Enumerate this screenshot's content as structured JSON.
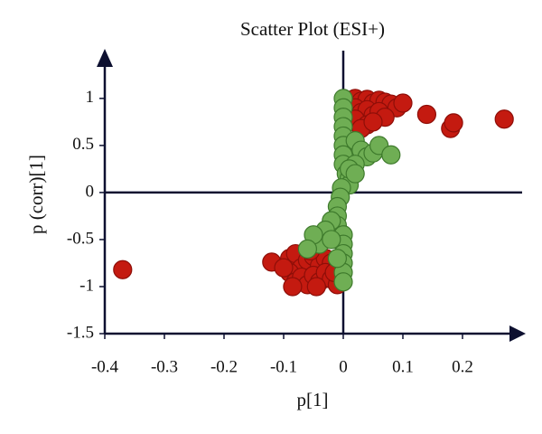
{
  "chart_data": {
    "type": "scatter",
    "title": "Scatter Plot (ESI+)",
    "x_label": "p[1]",
    "y_label": "p (corr)[1]",
    "xlim": [
      -0.4,
      0.3
    ],
    "ylim": [
      -1.5,
      1.45
    ],
    "xticks": [
      -0.4,
      -0.3,
      -0.2,
      -0.1,
      0,
      0.1,
      0.2
    ],
    "yticks": [
      -1.5,
      -1,
      -0.5,
      0,
      0.5,
      1
    ],
    "series": [
      {
        "color": "#c41a10",
        "stroke": "#8e0e08",
        "x": [
          0.01,
          0.02,
          0.03,
          0.04,
          0.05,
          0.06,
          0.07,
          0.08,
          0.09,
          0.02,
          0.03,
          0.04,
          0.05,
          0.06,
          0.07,
          0.02,
          0.04,
          0.03,
          0.05,
          0.1,
          0.14,
          0.18,
          0.185,
          0.27,
          -0.37,
          -0.12,
          -0.09,
          -0.08,
          -0.07,
          -0.06,
          -0.05,
          -0.04,
          -0.03,
          -0.02,
          -0.09,
          -0.08,
          -0.07,
          -0.06,
          -0.05,
          -0.04,
          -0.03,
          -0.02,
          -0.01,
          -0.1,
          -0.085,
          -0.045,
          -0.015,
          -0.055
        ],
        "values": [
          0.98,
          1.0,
          0.97,
          0.99,
          0.95,
          0.98,
          0.96,
          0.94,
          0.9,
          0.9,
          0.85,
          0.88,
          0.82,
          0.86,
          0.8,
          0.78,
          0.72,
          0.68,
          0.75,
          0.95,
          0.83,
          0.68,
          0.74,
          0.78,
          -0.82,
          -0.74,
          -0.7,
          -0.65,
          -0.8,
          -0.72,
          -0.68,
          -0.78,
          -0.7,
          -0.75,
          -0.85,
          -0.95,
          -0.9,
          -0.98,
          -0.88,
          -0.95,
          -0.85,
          -0.92,
          -0.98,
          -0.8,
          -1.0,
          -1.0,
          -0.85,
          -0.62
        ]
      },
      {
        "color": "#6fae54",
        "stroke": "#3e7a2c",
        "x": [
          0,
          0,
          0,
          0,
          0,
          0,
          0,
          0,
          0.005,
          0.01,
          0.01,
          0.02,
          0.03,
          0.04,
          0.05,
          0.06,
          0.08,
          0.02,
          0.01,
          0.02,
          -0.003,
          -0.005,
          -0.01,
          -0.01,
          -0.01,
          0,
          0,
          0,
          0,
          0,
          0,
          -0.02,
          -0.03,
          -0.04,
          -0.05,
          -0.06,
          -0.02,
          -0.01
        ],
        "values": [
          1.0,
          0.9,
          0.8,
          0.7,
          0.6,
          0.5,
          0.4,
          0.3,
          0.2,
          0.15,
          0.08,
          0.55,
          0.45,
          0.38,
          0.42,
          0.5,
          0.4,
          0.3,
          0.25,
          0.2,
          0.05,
          -0.05,
          -0.15,
          -0.25,
          -0.35,
          -0.45,
          -0.55,
          -0.65,
          -0.75,
          -0.85,
          -0.95,
          -0.3,
          -0.4,
          -0.55,
          -0.45,
          -0.6,
          -0.5,
          -0.7
        ]
      }
    ]
  }
}
